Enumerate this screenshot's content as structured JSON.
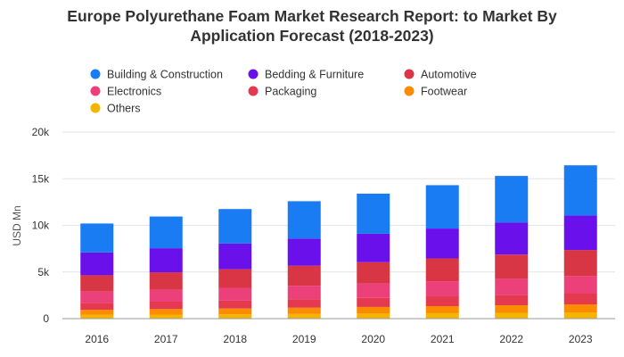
{
  "chart_data": {
    "type": "bar",
    "stacked": true,
    "title_lines": [
      "Europe Polyurethane Foam Market Research Report: to Market By",
      "Application Forecast (2018-2023)"
    ],
    "ylabel": "USD Mn",
    "xlabel": "",
    "ylim": [
      0,
      20000
    ],
    "yticks": [
      0,
      5000,
      10000,
      15000,
      20000
    ],
    "ytick_labels": [
      "0",
      "5k",
      "10k",
      "15k",
      "20k"
    ],
    "grid": true,
    "legend_position": "top",
    "categories": [
      "2016",
      "2017",
      "2018",
      "2019",
      "2020",
      "2021",
      "2022",
      "2023"
    ],
    "series": [
      {
        "name": "Others",
        "color": "#f4b400",
        "values": [
          400,
          430,
          460,
          500,
          540,
          580,
          620,
          670
        ]
      },
      {
        "name": "Footwear",
        "color": "#fb8c00",
        "values": [
          550,
          590,
          630,
          670,
          710,
          760,
          810,
          860
        ]
      },
      {
        "name": "Packaging",
        "color": "#e53950",
        "values": [
          750,
          800,
          860,
          920,
          980,
          1050,
          1120,
          1200
        ]
      },
      {
        "name": "Electronics",
        "color": "#ec407a",
        "values": [
          1200,
          1280,
          1350,
          1430,
          1520,
          1620,
          1720,
          1830
        ]
      },
      {
        "name": "Automotive",
        "color": "#d83545",
        "values": [
          1750,
          1870,
          2000,
          2150,
          2300,
          2450,
          2600,
          2800
        ]
      },
      {
        "name": "Bedding & Furniture",
        "color": "#6a11eb",
        "values": [
          2450,
          2580,
          2750,
          2920,
          3050,
          3200,
          3450,
          3700
        ]
      },
      {
        "name": "Building & Construction",
        "color": "#1a7cf2",
        "values": [
          3100,
          3400,
          3700,
          4000,
          4300,
          4650,
          4980,
          5380
        ]
      }
    ],
    "legend_order": [
      "Building & Construction",
      "Bedding & Furniture",
      "Automotive",
      "Electronics",
      "Packaging",
      "Footwear",
      "Others"
    ]
  }
}
